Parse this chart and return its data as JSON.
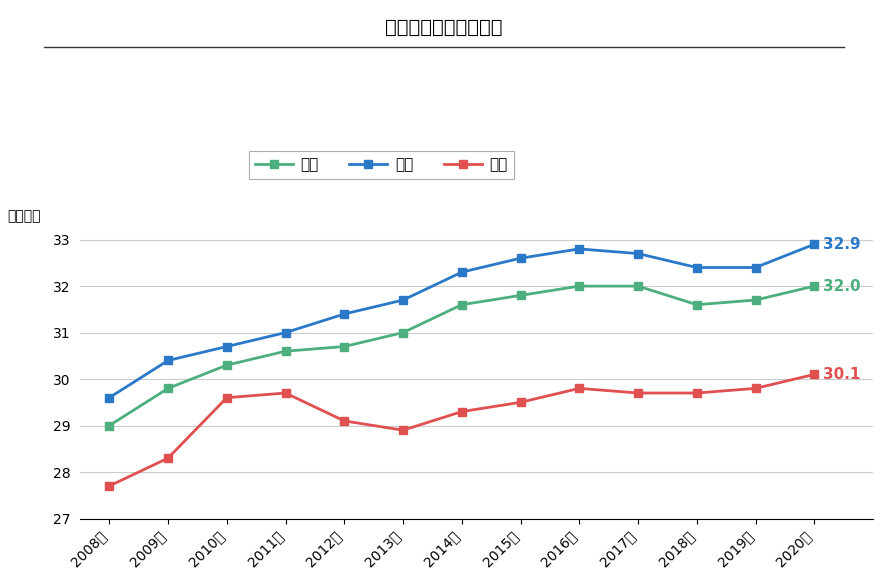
{
  "title": "転職成功者の平均年齢",
  "ylabel": "（年齢）",
  "years": [
    "2008年",
    "2009年",
    "2010年",
    "2011年",
    "2012年",
    "2013年",
    "2014年",
    "2015年",
    "2016年",
    "2017年",
    "2018年",
    "2019年",
    "2020年"
  ],
  "zentai": [
    29.0,
    29.8,
    30.3,
    30.6,
    30.7,
    31.0,
    31.6,
    31.8,
    32.0,
    32.0,
    31.6,
    31.7,
    32.0
  ],
  "dansei": [
    29.6,
    30.4,
    30.7,
    31.0,
    31.4,
    31.7,
    32.3,
    32.6,
    32.8,
    32.7,
    32.4,
    32.4,
    32.9
  ],
  "josei": [
    27.7,
    28.3,
    29.6,
    29.7,
    29.1,
    28.9,
    29.3,
    29.5,
    29.8,
    29.7,
    29.7,
    29.8,
    30.1
  ],
  "zentai_color": "#4caf7d",
  "dansei_color": "#2979c8",
  "josei_color": "#e05050",
  "legend_labels": [
    "全体",
    "男性",
    "女性"
  ],
  "ylim": [
    27,
    33.3
  ],
  "yticks": [
    27,
    28,
    29,
    30,
    31,
    32,
    33
  ],
  "end_labels": [
    "32.0",
    "32.9",
    "30.1"
  ],
  "background_color": "#ffffff",
  "grid_color": "#cccccc"
}
